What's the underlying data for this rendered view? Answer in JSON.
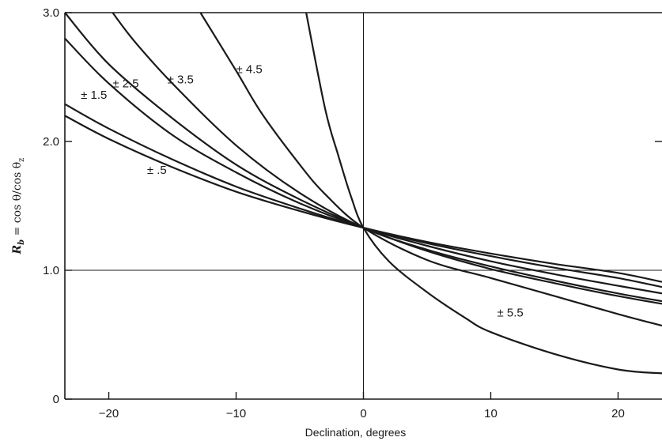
{
  "chart_data": {
    "type": "line",
    "title": "",
    "xlabel": "Declination, degrees",
    "ylabel": {
      "symbol": "R",
      "subscript": "b",
      "rest": " = cos θ/cos θ",
      "rest_subscript": "z"
    },
    "xlim": [
      -23.45,
      23.45
    ],
    "ylim": [
      0,
      3.0
    ],
    "x_ticks": [
      -20,
      -10,
      0,
      10,
      20
    ],
    "x_tick_labels": [
      "−20",
      "−10",
      "0",
      "10",
      "20"
    ],
    "y_ticks": [
      0,
      1.0,
      2.0,
      3.0
    ],
    "y_tick_labels": [
      "0",
      "1.0",
      "2.0",
      "3.0"
    ],
    "reference_lines": {
      "x": 0,
      "y": 1.0
    },
    "grid": false,
    "series": [
      {
        "name": "± .5",
        "x": [
          -23.45,
          -20,
          -15,
          -10,
          -5,
          0,
          5,
          10,
          15,
          20,
          23.45
        ],
        "y": [
          2.2,
          2.02,
          1.8,
          1.61,
          1.46,
          1.33,
          1.22,
          1.13,
          1.05,
          0.98,
          0.91
        ]
      },
      {
        "name": "± 1.5",
        "x": [
          -23.45,
          -20,
          -15,
          -10,
          -5,
          0,
          5,
          10,
          15,
          20,
          23.45
        ],
        "y": [
          2.29,
          2.1,
          1.86,
          1.65,
          1.48,
          1.33,
          1.21,
          1.11,
          1.02,
          0.94,
          0.87
        ]
      },
      {
        "name": "± 2.5",
        "x": [
          -23.45,
          -20,
          -15,
          -10,
          -5,
          0,
          5,
          10,
          15,
          20,
          23.45
        ],
        "y": [
          2.8,
          2.45,
          2.05,
          1.76,
          1.52,
          1.33,
          1.19,
          1.07,
          0.97,
          0.88,
          0.82
        ]
      },
      {
        "name": "± 3.5",
        "x": [
          -19.7,
          -18,
          -15,
          -10,
          -5,
          0,
          5,
          10,
          15,
          20,
          23.45
        ],
        "y": [
          3.0,
          2.78,
          2.45,
          1.97,
          1.6,
          1.33,
          1.16,
          1.03,
          0.92,
          0.82,
          0.76
        ]
      },
      {
        "name": "± 4.5",
        "x": [
          -12.8,
          -10,
          -8,
          -5,
          -3,
          0,
          5,
          10,
          15,
          20,
          23.45
        ],
        "y": [
          3.0,
          2.55,
          2.22,
          1.82,
          1.59,
          1.33,
          1.08,
          0.94,
          0.8,
          0.66,
          0.57
        ]
      },
      {
        "name": "± 5.5",
        "x": [
          -4.5,
          -3,
          -2,
          -1,
          0,
          2,
          5,
          8,
          10,
          15,
          20,
          23.45
        ],
        "y": [
          3.0,
          2.25,
          1.9,
          1.58,
          1.33,
          1.07,
          0.83,
          0.63,
          0.52,
          0.35,
          0.23,
          0.2
        ]
      },
      {
        "name": "",
        "x": [
          -23.45,
          -20,
          -15,
          -10,
          -5,
          0,
          5,
          10,
          15,
          20,
          23.45
        ],
        "y": [
          3.0,
          2.6,
          2.18,
          1.82,
          1.55,
          1.33,
          1.15,
          1.01,
          0.9,
          0.8,
          0.74
        ]
      }
    ],
    "annotations": [
      {
        "text": "± .5",
        "x": -17,
        "y": 1.75
      },
      {
        "text": "± 1.5",
        "x": -22.2,
        "y": 2.33
      },
      {
        "text": "± 2.5",
        "x": -19.7,
        "y": 2.42
      },
      {
        "text": "± 3.5",
        "x": -15.4,
        "y": 2.45
      },
      {
        "text": "± 4.5",
        "x": -10,
        "y": 2.53
      },
      {
        "text": "± 5.5",
        "x": 10.5,
        "y": 0.64
      }
    ]
  }
}
